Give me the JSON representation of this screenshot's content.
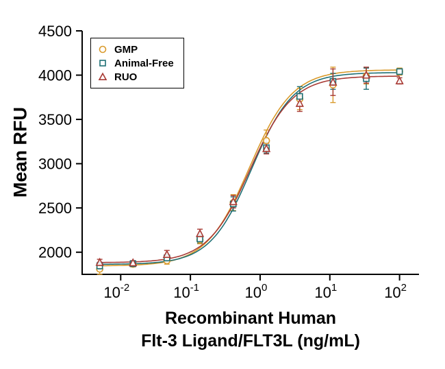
{
  "chart_data": {
    "type": "scatter",
    "title": "",
    "ylabel": "Mean RFU",
    "xlabel_line1": "Recombinant Human",
    "xlabel_line2": "Flt-3 Ligand/FLT3L (ng/mL)",
    "x_scale": "log10",
    "xlim": [
      0.0028,
      190
    ],
    "ylim": [
      1750,
      4500
    ],
    "yticks": [
      2000,
      2500,
      3000,
      3500,
      4000,
      4500
    ],
    "xticks": [
      0.01,
      0.1,
      1,
      10,
      100
    ],
    "grid": false,
    "legend_position": "top-left-inside",
    "x": [
      0.005,
      0.015,
      0.046,
      0.137,
      0.412,
      1.23,
      3.7,
      11.1,
      33.3,
      100
    ],
    "series": [
      {
        "name": "GMP",
        "marker": "circle",
        "color": "#D99A2B",
        "values": [
          1810,
          1865,
          1905,
          2140,
          2560,
          3260,
          3730,
          3890,
          3990,
          4040
        ],
        "errors": [
          60,
          30,
          40,
          45,
          90,
          120,
          120,
          200,
          90,
          40
        ],
        "fit": {
          "bottom": 1845,
          "top": 4060,
          "ec50": 0.7,
          "hill": 1.4
        }
      },
      {
        "name": "Animal-Free",
        "marker": "square",
        "color": "#1E6F74",
        "values": [
          1845,
          1870,
          1935,
          2150,
          2545,
          3180,
          3760,
          3930,
          3960,
          4040
        ],
        "errors": [
          40,
          25,
          35,
          45,
          80,
          60,
          110,
          90,
          120,
          30
        ],
        "fit": {
          "bottom": 1862,
          "top": 4030,
          "ec50": 0.76,
          "hill": 1.45
        }
      },
      {
        "name": "RUO",
        "marker": "triangle",
        "color": "#A83A34",
        "values": [
          1885,
          1880,
          1975,
          2210,
          2570,
          3170,
          3680,
          3920,
          4000,
          3935
        ],
        "errors": [
          35,
          25,
          45,
          50,
          70,
          60,
          90,
          150,
          90,
          35
        ],
        "fit": {
          "bottom": 1882,
          "top": 3990,
          "ec50": 0.72,
          "hill": 1.42
        }
      }
    ]
  }
}
